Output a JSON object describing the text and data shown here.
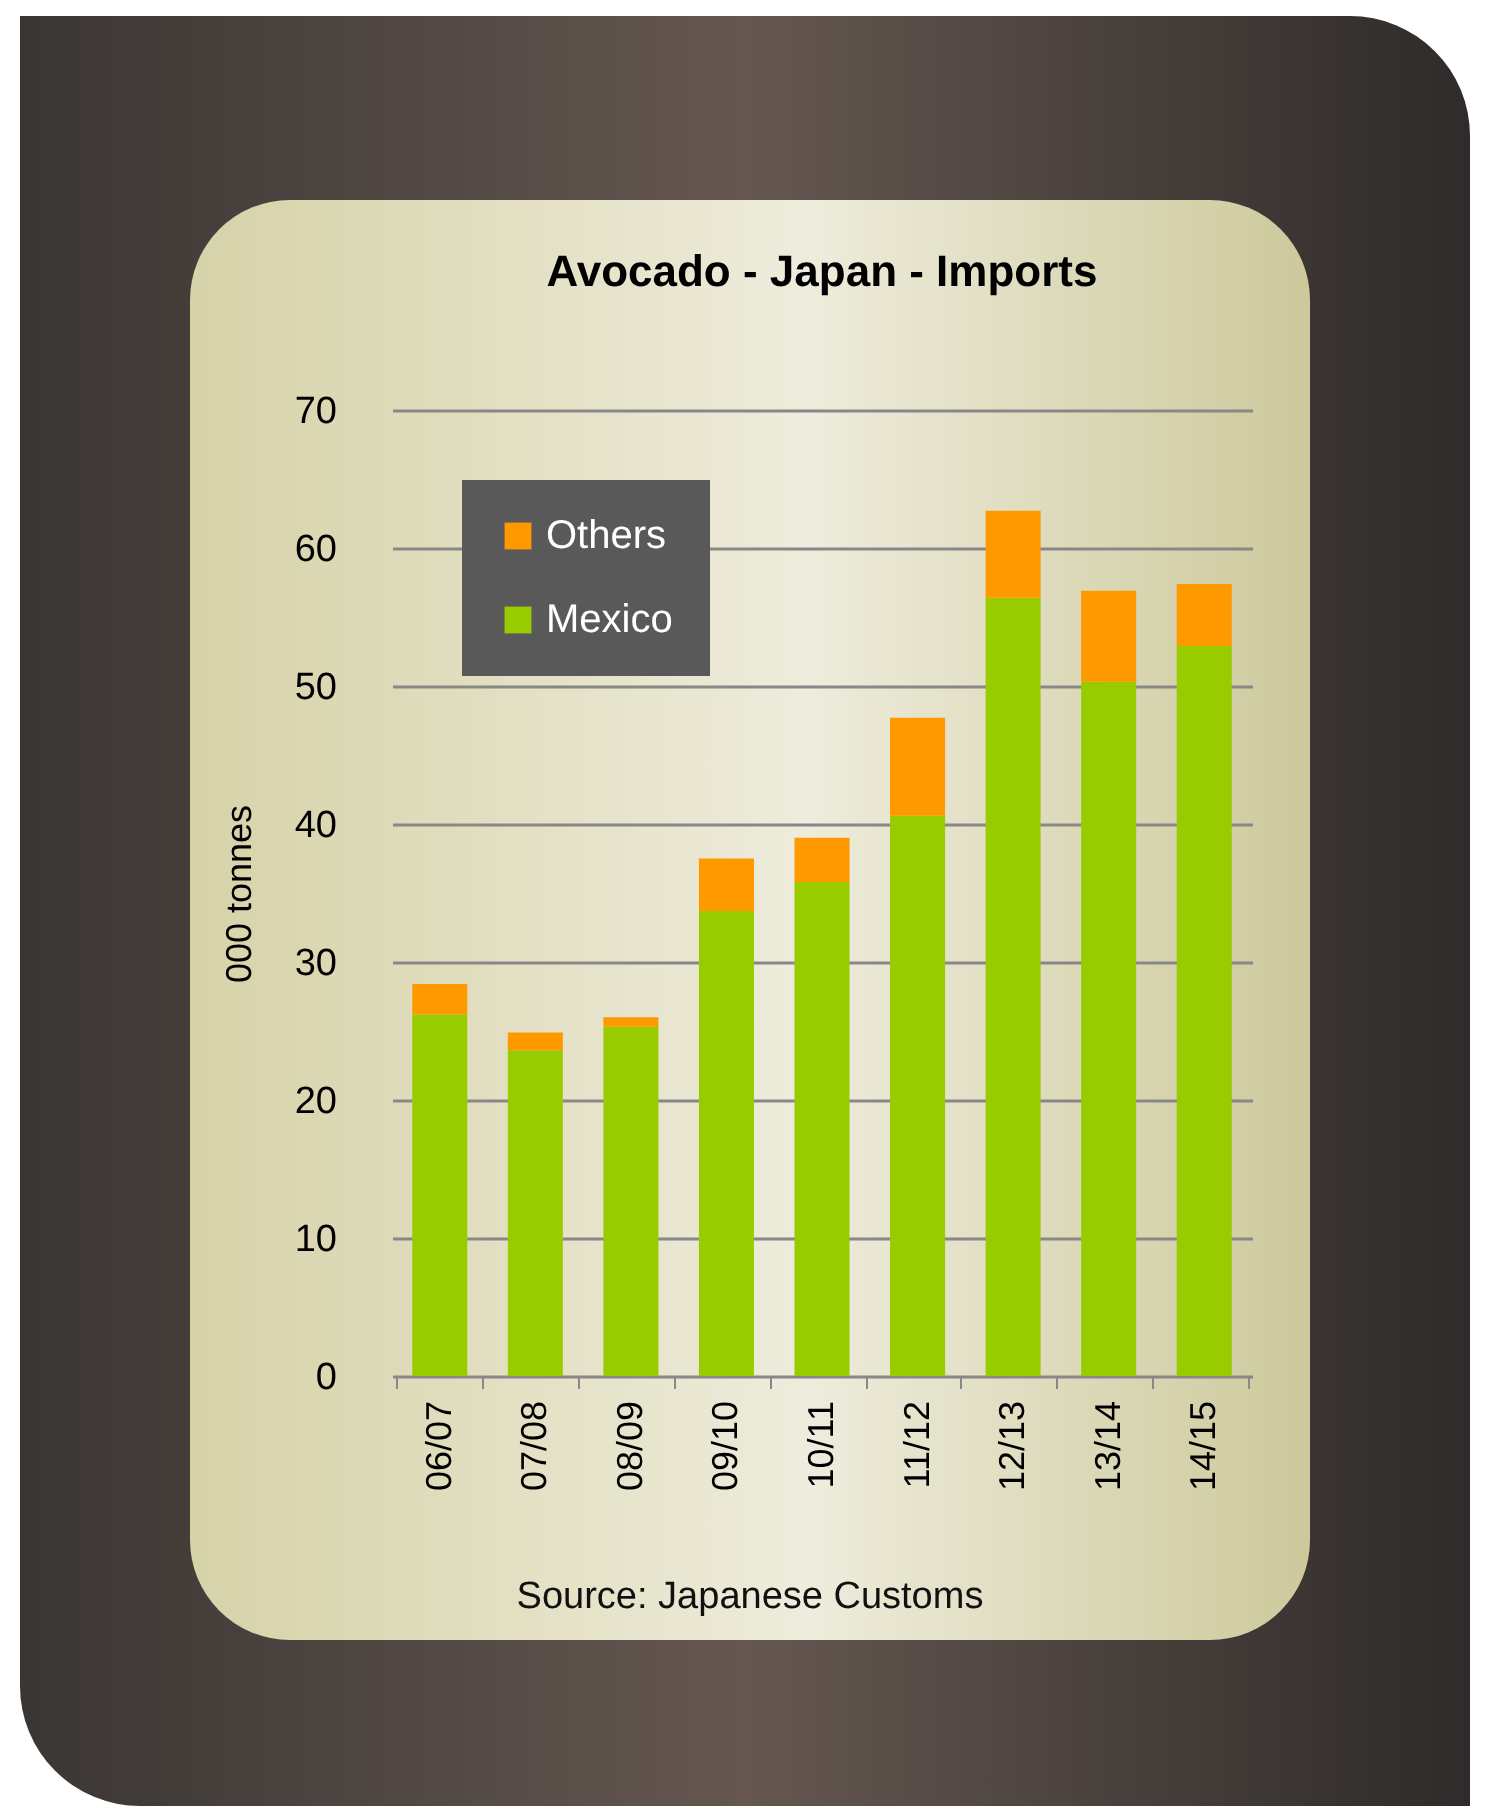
{
  "chart_data": {
    "type": "bar",
    "title": "Avocado - Japan - Imports",
    "ylabel": "000 tonnes",
    "categories": [
      "06/07",
      "07/08",
      "08/09",
      "09/10",
      "10/11",
      "11/12",
      "12/13",
      "13/14",
      "14/15"
    ],
    "series": [
      {
        "name": "Mexico",
        "color": "#99cc00",
        "values": [
          26.2,
          23.6,
          25.3,
          33.7,
          35.8,
          40.6,
          56.4,
          50.3,
          52.9
        ]
      },
      {
        "name": "Others",
        "color": "#ff9900",
        "values": [
          2.2,
          1.3,
          0.7,
          3.8,
          3.2,
          7.1,
          6.3,
          6.6,
          4.5
        ]
      }
    ],
    "stacked": true,
    "ylim": [
      0,
      70
    ],
    "yticks": [
      0,
      10,
      20,
      30,
      40,
      50,
      60,
      70
    ],
    "grid": "y",
    "legend": "top left",
    "annotations": [
      "Source: Japanese Customs"
    ]
  }
}
